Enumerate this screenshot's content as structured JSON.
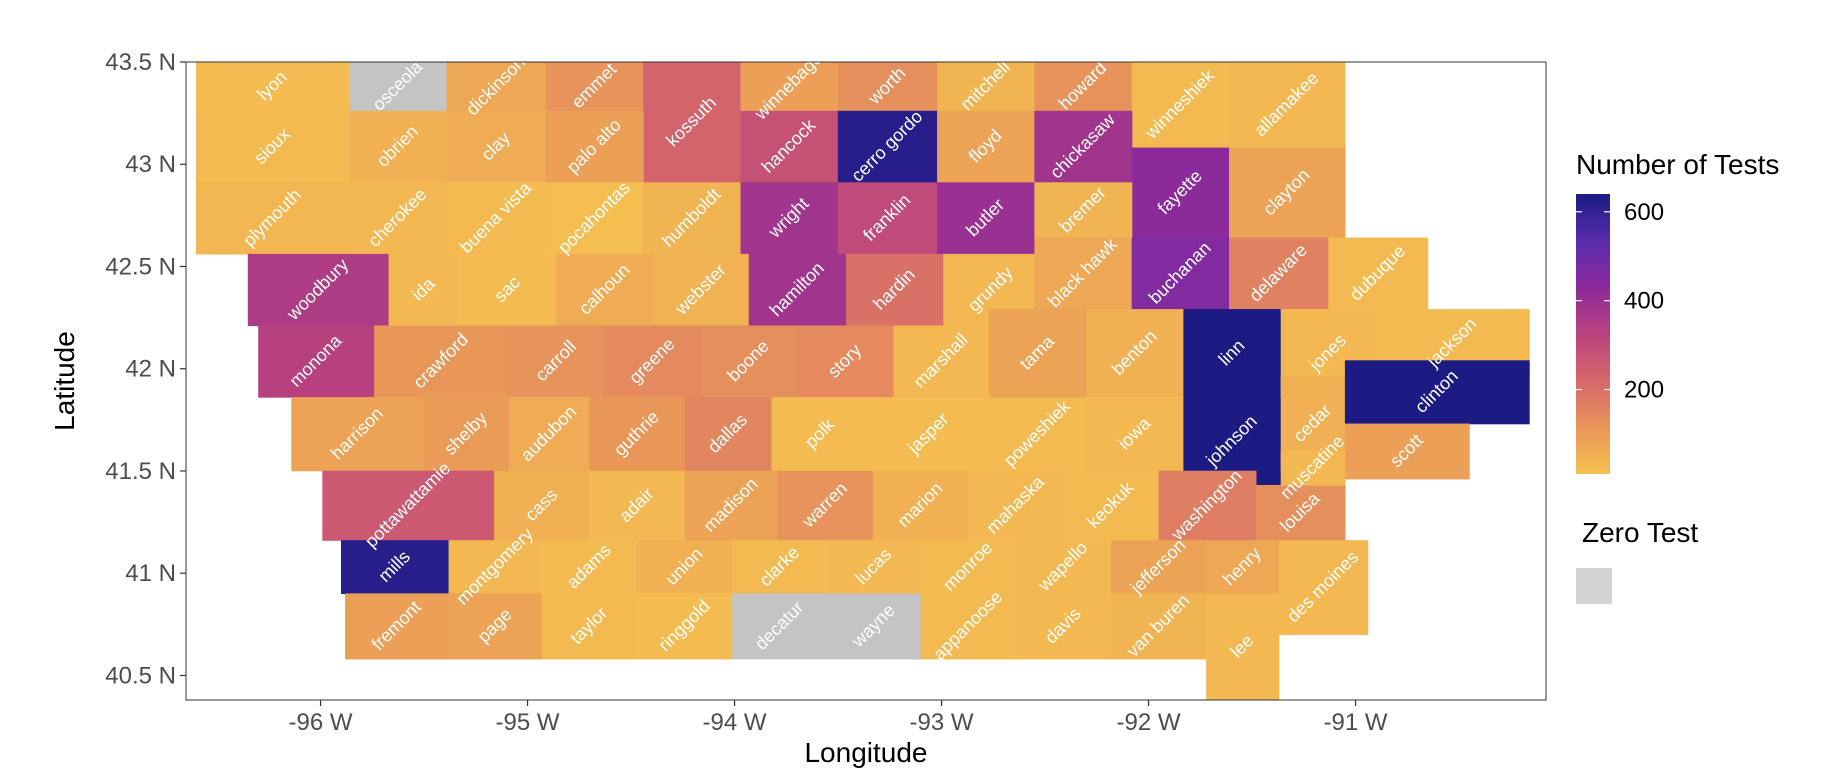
{
  "chart_data": {
    "type": "choropleth",
    "xlabel": "Longitude",
    "ylabel": "Latitude",
    "xlim": [
      -96.65,
      -90.08
    ],
    "ylim": [
      40.38,
      43.5
    ],
    "x_ticks": [
      {
        "value": -96,
        "label": "-96 W"
      },
      {
        "value": -95,
        "label": "-95 W"
      },
      {
        "value": -94,
        "label": "-94 W"
      },
      {
        "value": -93,
        "label": "-93 W"
      },
      {
        "value": -92,
        "label": "-92 W"
      },
      {
        "value": -91,
        "label": "-91 W"
      }
    ],
    "y_ticks": [
      {
        "value": 43.5,
        "label": "43.5 N"
      },
      {
        "value": 43,
        "label": "43 N"
      },
      {
        "value": 42.5,
        "label": "42.5 N"
      },
      {
        "value": 42,
        "label": "42 N"
      },
      {
        "value": 41.5,
        "label": "41.5 N"
      },
      {
        "value": 41,
        "label": "41 N"
      },
      {
        "value": 40.5,
        "label": "40.5 N"
      }
    ],
    "legend": {
      "title": "Number of Tests",
      "range": [
        10,
        640
      ],
      "ticks": [
        {
          "value": 600,
          "label": "600"
        },
        {
          "value": 400,
          "label": "400"
        },
        {
          "value": 200,
          "label": "200"
        }
      ],
      "colors": [
        "#f5c04f",
        "#e8955a",
        "#d6686a",
        "#b9417e",
        "#8c2a9c",
        "#582cad",
        "#1c1b83"
      ],
      "zero_title": "Zero Test",
      "zero_color": "#c4c4c4"
    },
    "counties": [
      {
        "name": "lyon",
        "lon0": -96.6,
        "lon1": -95.86,
        "lat0": 43.26,
        "lat1": 43.5,
        "tests": 20
      },
      {
        "name": "osceola",
        "lon0": -95.86,
        "lon1": -95.39,
        "lat0": 43.26,
        "lat1": 43.5,
        "tests": 0
      },
      {
        "name": "dickinson",
        "lon0": -95.39,
        "lon1": -94.91,
        "lat0": 43.26,
        "lat1": 43.5,
        "tests": 70
      },
      {
        "name": "emmet",
        "lon0": -94.91,
        "lon1": -94.44,
        "lat0": 43.26,
        "lat1": 43.5,
        "tests": 120
      },
      {
        "name": "kossuth",
        "lon0": -94.44,
        "lon1": -93.97,
        "lat0": 42.91,
        "lat1": 43.5,
        "tests": 230
      },
      {
        "name": "winnebago",
        "lon0": -93.97,
        "lon1": -93.5,
        "lat0": 43.26,
        "lat1": 43.5,
        "tests": 90
      },
      {
        "name": "worth",
        "lon0": -93.5,
        "lon1": -93.02,
        "lat0": 43.26,
        "lat1": 43.5,
        "tests": 130
      },
      {
        "name": "mitchell",
        "lon0": -93.02,
        "lon1": -92.55,
        "lat0": 43.26,
        "lat1": 43.5,
        "tests": 40
      },
      {
        "name": "howard",
        "lon0": -92.55,
        "lon1": -92.08,
        "lat0": 43.26,
        "lat1": 43.5,
        "tests": 120
      },
      {
        "name": "winneshiek",
        "lon0": -92.08,
        "lon1": -91.61,
        "lat0": 43.08,
        "lat1": 43.5,
        "tests": 25
      },
      {
        "name": "allamakee",
        "lon0": -91.61,
        "lon1": -91.05,
        "lat0": 43.08,
        "lat1": 43.5,
        "tests": 30
      },
      {
        "name": "sioux",
        "lon0": -96.6,
        "lon1": -95.86,
        "lat0": 42.91,
        "lat1": 43.26,
        "tests": 25
      },
      {
        "name": "obrien",
        "lon0": -95.86,
        "lon1": -95.39,
        "lat0": 42.91,
        "lat1": 43.26,
        "tests": 50
      },
      {
        "name": "clay",
        "lon0": -95.39,
        "lon1": -94.91,
        "lat0": 42.91,
        "lat1": 43.26,
        "tests": 60
      },
      {
        "name": "palo alto",
        "lon0": -94.91,
        "lon1": -94.44,
        "lat0": 42.91,
        "lat1": 43.26,
        "tests": 90
      },
      {
        "name": "hancock",
        "lon0": -93.97,
        "lon1": -93.5,
        "lat0": 42.91,
        "lat1": 43.26,
        "tests": 280
      },
      {
        "name": "cerro gordo",
        "lon0": -93.5,
        "lon1": -93.02,
        "lat0": 42.91,
        "lat1": 43.26,
        "tests": 620
      },
      {
        "name": "floyd",
        "lon0": -93.02,
        "lon1": -92.55,
        "lat0": 42.91,
        "lat1": 43.26,
        "tests": 80
      },
      {
        "name": "chickasaw",
        "lon0": -92.55,
        "lon1": -92.08,
        "lat0": 42.91,
        "lat1": 43.26,
        "tests": 380
      },
      {
        "name": "fayette",
        "lon0": -92.08,
        "lon1": -91.61,
        "lat0": 42.64,
        "lat1": 43.08,
        "tests": 430
      },
      {
        "name": "clayton",
        "lon0": -91.61,
        "lon1": -91.05,
        "lat0": 42.64,
        "lat1": 43.08,
        "tests": 80
      },
      {
        "name": "plymouth",
        "lon0": -96.6,
        "lon1": -95.86,
        "lat0": 42.56,
        "lat1": 42.91,
        "tests": 35
      },
      {
        "name": "cherokee",
        "lon0": -95.86,
        "lon1": -95.39,
        "lat0": 42.56,
        "lat1": 42.91,
        "tests": 30
      },
      {
        "name": "buena vista",
        "lon0": -95.39,
        "lon1": -94.91,
        "lat0": 42.56,
        "lat1": 42.91,
        "tests": 25
      },
      {
        "name": "pocahontas",
        "lon0": -94.91,
        "lon1": -94.44,
        "lat0": 42.56,
        "lat1": 42.91,
        "tests": 15
      },
      {
        "name": "humboldt",
        "lon0": -94.44,
        "lon1": -93.97,
        "lat0": 42.56,
        "lat1": 42.91,
        "tests": 40
      },
      {
        "name": "wright",
        "lon0": -93.97,
        "lon1": -93.5,
        "lat0": 42.56,
        "lat1": 42.91,
        "tests": 380
      },
      {
        "name": "franklin",
        "lon0": -93.5,
        "lon1": -93.02,
        "lat0": 42.56,
        "lat1": 42.91,
        "tests": 300
      },
      {
        "name": "butler",
        "lon0": -93.02,
        "lon1": -92.55,
        "lat0": 42.56,
        "lat1": 42.91,
        "tests": 400
      },
      {
        "name": "bremer",
        "lon0": -92.55,
        "lon1": -92.08,
        "lat0": 42.64,
        "lat1": 42.91,
        "tests": 40
      },
      {
        "name": "woodbury",
        "lon0": -96.35,
        "lon1": -95.67,
        "lat0": 42.21,
        "lat1": 42.56,
        "tests": 350
      },
      {
        "name": "ida",
        "lon0": -95.67,
        "lon1": -95.33,
        "lat0": 42.21,
        "lat1": 42.56,
        "tests": 30
      },
      {
        "name": "sac",
        "lon0": -95.33,
        "lon1": -94.86,
        "lat0": 42.21,
        "lat1": 42.56,
        "tests": 20
      },
      {
        "name": "calhoun",
        "lon0": -94.86,
        "lon1": -94.39,
        "lat0": 42.21,
        "lat1": 42.56,
        "tests": 60
      },
      {
        "name": "webster",
        "lon0": -94.39,
        "lon1": -93.93,
        "lat0": 42.21,
        "lat1": 42.56,
        "tests": 45
      },
      {
        "name": "hamilton",
        "lon0": -93.93,
        "lon1": -93.46,
        "lat0": 42.21,
        "lat1": 42.56,
        "tests": 380
      },
      {
        "name": "hardin",
        "lon0": -93.46,
        "lon1": -92.99,
        "lat0": 42.21,
        "lat1": 42.56,
        "tests": 200
      },
      {
        "name": "grundy",
        "lon0": -92.99,
        "lon1": -92.53,
        "lat0": 42.21,
        "lat1": 42.56,
        "tests": 30
      },
      {
        "name": "black hawk",
        "lon0": -92.55,
        "lon1": -92.08,
        "lat0": 42.29,
        "lat1": 42.64,
        "tests": 70
      },
      {
        "name": "buchanan",
        "lon0": -92.08,
        "lon1": -91.61,
        "lat0": 42.29,
        "lat1": 42.64,
        "tests": 450
      },
      {
        "name": "delaware",
        "lon0": -91.61,
        "lon1": -91.13,
        "lat0": 42.29,
        "lat1": 42.64,
        "tests": 160
      },
      {
        "name": "dubuque",
        "lon0": -91.13,
        "lon1": -90.65,
        "lat0": 42.29,
        "lat1": 42.64,
        "tests": 25
      },
      {
        "name": "monona",
        "lon0": -96.3,
        "lon1": -95.74,
        "lat0": 41.86,
        "lat1": 42.21,
        "tests": 330
      },
      {
        "name": "crawford",
        "lon0": -95.74,
        "lon1": -95.09,
        "lat0": 41.86,
        "lat1": 42.21,
        "tests": 110
      },
      {
        "name": "carroll",
        "lon0": -95.09,
        "lon1": -94.63,
        "lat0": 41.86,
        "lat1": 42.21,
        "tests": 120
      },
      {
        "name": "greene",
        "lon0": -94.63,
        "lon1": -94.16,
        "lat0": 41.86,
        "lat1": 42.21,
        "tests": 140
      },
      {
        "name": "boone",
        "lon0": -94.16,
        "lon1": -93.7,
        "lat0": 41.86,
        "lat1": 42.21,
        "tests": 130
      },
      {
        "name": "story",
        "lon0": -93.7,
        "lon1": -93.23,
        "lat0": 41.86,
        "lat1": 42.21,
        "tests": 140
      },
      {
        "name": "marshall",
        "lon0": -93.23,
        "lon1": -92.77,
        "lat0": 41.86,
        "lat1": 42.21,
        "tests": 30
      },
      {
        "name": "tama",
        "lon0": -92.77,
        "lon1": -92.3,
        "lat0": 41.86,
        "lat1": 42.29,
        "tests": 80
      },
      {
        "name": "benton",
        "lon0": -92.3,
        "lon1": -91.83,
        "lat0": 41.86,
        "lat1": 42.29,
        "tests": 50
      },
      {
        "name": "linn",
        "lon0": -91.83,
        "lon1": -91.36,
        "lat0": 41.86,
        "lat1": 42.29,
        "tests": 640
      },
      {
        "name": "jones",
        "lon0": -91.36,
        "lon1": -90.9,
        "lat0": 41.86,
        "lat1": 42.29,
        "tests": 30
      },
      {
        "name": "jackson",
        "lon0": -90.9,
        "lon1": -90.16,
        "lat0": 41.96,
        "lat1": 42.29,
        "tests": 25
      },
      {
        "name": "harrison",
        "lon0": -96.14,
        "lon1": -95.5,
        "lat0": 41.5,
        "lat1": 41.86,
        "tests": 80
      },
      {
        "name": "shelby",
        "lon0": -95.5,
        "lon1": -95.09,
        "lat0": 41.5,
        "lat1": 41.86,
        "tests": 100
      },
      {
        "name": "audubon",
        "lon0": -95.09,
        "lon1": -94.7,
        "lat0": 41.5,
        "lat1": 41.86,
        "tests": 60
      },
      {
        "name": "guthrie",
        "lon0": -94.7,
        "lon1": -94.24,
        "lat0": 41.5,
        "lat1": 41.86,
        "tests": 110
      },
      {
        "name": "dallas",
        "lon0": -94.24,
        "lon1": -93.82,
        "lat0": 41.5,
        "lat1": 41.86,
        "tests": 150
      },
      {
        "name": "polk",
        "lon0": -93.82,
        "lon1": -93.35,
        "lat0": 41.5,
        "lat1": 41.86,
        "tests": 20
      },
      {
        "name": "jasper",
        "lon0": -93.35,
        "lon1": -92.77,
        "lat0": 41.5,
        "lat1": 41.86,
        "tests": 20
      },
      {
        "name": "poweshiek",
        "lon0": -92.77,
        "lon1": -92.3,
        "lat0": 41.5,
        "lat1": 41.86,
        "tests": 25
      },
      {
        "name": "iowa",
        "lon0": -92.3,
        "lon1": -91.83,
        "lat0": 41.5,
        "lat1": 41.86,
        "tests": 30
      },
      {
        "name": "johnson",
        "lon0": -91.83,
        "lon1": -91.36,
        "lat0": 41.43,
        "lat1": 41.86,
        "tests": 640
      },
      {
        "name": "cedar",
        "lon0": -91.36,
        "lon1": -91.05,
        "lat0": 41.5,
        "lat1": 41.96,
        "tests": 50
      },
      {
        "name": "clinton",
        "lon0": -91.05,
        "lon1": -90.16,
        "lat0": 41.73,
        "lat1": 42.04,
        "tests": 640
      },
      {
        "name": "scott",
        "lon0": -91.05,
        "lon1": -90.45,
        "lat0": 41.46,
        "lat1": 41.73,
        "tests": 90
      },
      {
        "name": "pottawattamie",
        "lon0": -95.99,
        "lon1": -95.16,
        "lat0": 41.16,
        "lat1": 41.5,
        "tests": 260
      },
      {
        "name": "cass",
        "lon0": -95.16,
        "lon1": -94.7,
        "lat0": 41.16,
        "lat1": 41.5,
        "tests": 50
      },
      {
        "name": "adair",
        "lon0": -94.7,
        "lon1": -94.24,
        "lat0": 41.16,
        "lat1": 41.5,
        "tests": 30
      },
      {
        "name": "madison",
        "lon0": -94.24,
        "lon1": -93.79,
        "lat0": 41.16,
        "lat1": 41.5,
        "tests": 80
      },
      {
        "name": "warren",
        "lon0": -93.79,
        "lon1": -93.33,
        "lat0": 41.16,
        "lat1": 41.5,
        "tests": 120
      },
      {
        "name": "marion",
        "lon0": -93.33,
        "lon1": -92.87,
        "lat0": 41.16,
        "lat1": 41.5,
        "tests": 50
      },
      {
        "name": "mahaska",
        "lon0": -92.87,
        "lon1": -92.41,
        "lat0": 41.16,
        "lat1": 41.5,
        "tests": 30
      },
      {
        "name": "keokuk",
        "lon0": -92.41,
        "lon1": -91.95,
        "lat0": 41.16,
        "lat1": 41.5,
        "tests": 25
      },
      {
        "name": "washington",
        "lon0": -91.95,
        "lon1": -91.48,
        "lat0": 41.16,
        "lat1": 41.5,
        "tests": 170
      },
      {
        "name": "louisa",
        "lon0": -91.48,
        "lon1": -91.05,
        "lat0": 41.16,
        "lat1": 41.43,
        "tests": 130
      },
      {
        "name": "muscatine",
        "lon0": -91.36,
        "lon1": -91.05,
        "lat0": 41.43,
        "lat1": 41.6,
        "tests": 30
      },
      {
        "name": "mills",
        "lon0": -95.9,
        "lon1": -95.38,
        "lat0": 40.9,
        "lat1": 41.16,
        "tests": 620
      },
      {
        "name": "montgomery",
        "lon0": -95.38,
        "lon1": -94.93,
        "lat0": 40.9,
        "lat1": 41.16,
        "tests": 30
      },
      {
        "name": "adams",
        "lon0": -94.93,
        "lon1": -94.47,
        "lat0": 40.9,
        "lat1": 41.16,
        "tests": 25
      },
      {
        "name": "union",
        "lon0": -94.47,
        "lon1": -94.01,
        "lat0": 40.9,
        "lat1": 41.16,
        "tests": 50
      },
      {
        "name": "clarke",
        "lon0": -94.01,
        "lon1": -93.55,
        "lat0": 40.9,
        "lat1": 41.16,
        "tests": 25
      },
      {
        "name": "lucas",
        "lon0": -93.55,
        "lon1": -93.1,
        "lat0": 40.9,
        "lat1": 41.16,
        "tests": 30
      },
      {
        "name": "monroe",
        "lon0": -93.1,
        "lon1": -92.64,
        "lat0": 40.9,
        "lat1": 41.16,
        "tests": 25
      },
      {
        "name": "wapello",
        "lon0": -92.64,
        "lon1": -92.18,
        "lat0": 40.9,
        "lat1": 41.16,
        "tests": 30
      },
      {
        "name": "jefferson",
        "lon0": -92.18,
        "lon1": -91.72,
        "lat0": 40.9,
        "lat1": 41.16,
        "tests": 80
      },
      {
        "name": "henry",
        "lon0": -91.72,
        "lon1": -91.37,
        "lat0": 40.9,
        "lat1": 41.16,
        "tests": 70
      },
      {
        "name": "des moines",
        "lon0": -91.37,
        "lon1": -90.94,
        "lat0": 40.7,
        "lat1": 41.16,
        "tests": 30
      },
      {
        "name": "fremont",
        "lon0": -95.88,
        "lon1": -95.38,
        "lat0": 40.58,
        "lat1": 40.9,
        "tests": 90
      },
      {
        "name": "page",
        "lon0": -95.38,
        "lon1": -94.93,
        "lat0": 40.58,
        "lat1": 40.9,
        "tests": 80
      },
      {
        "name": "taylor",
        "lon0": -94.93,
        "lon1": -94.47,
        "lat0": 40.58,
        "lat1": 40.9,
        "tests": 25
      },
      {
        "name": "ringgold",
        "lon0": -94.47,
        "lon1": -94.01,
        "lat0": 40.58,
        "lat1": 40.9,
        "tests": 20
      },
      {
        "name": "decatur",
        "lon0": -94.01,
        "lon1": -93.55,
        "lat0": 40.58,
        "lat1": 40.9,
        "tests": 0
      },
      {
        "name": "wayne",
        "lon0": -93.55,
        "lon1": -93.1,
        "lat0": 40.58,
        "lat1": 40.9,
        "tests": 0
      },
      {
        "name": "appanoose",
        "lon0": -93.1,
        "lon1": -92.64,
        "lat0": 40.58,
        "lat1": 40.9,
        "tests": 25
      },
      {
        "name": "davis",
        "lon0": -92.64,
        "lon1": -92.18,
        "lat0": 40.58,
        "lat1": 40.9,
        "tests": 30
      },
      {
        "name": "van buren",
        "lon0": -92.18,
        "lon1": -91.72,
        "lat0": 40.58,
        "lat1": 40.9,
        "tests": 40
      },
      {
        "name": "lee",
        "lon0": -91.72,
        "lon1": -91.37,
        "lat0": 40.38,
        "lat1": 40.9,
        "tests": 30
      }
    ]
  }
}
